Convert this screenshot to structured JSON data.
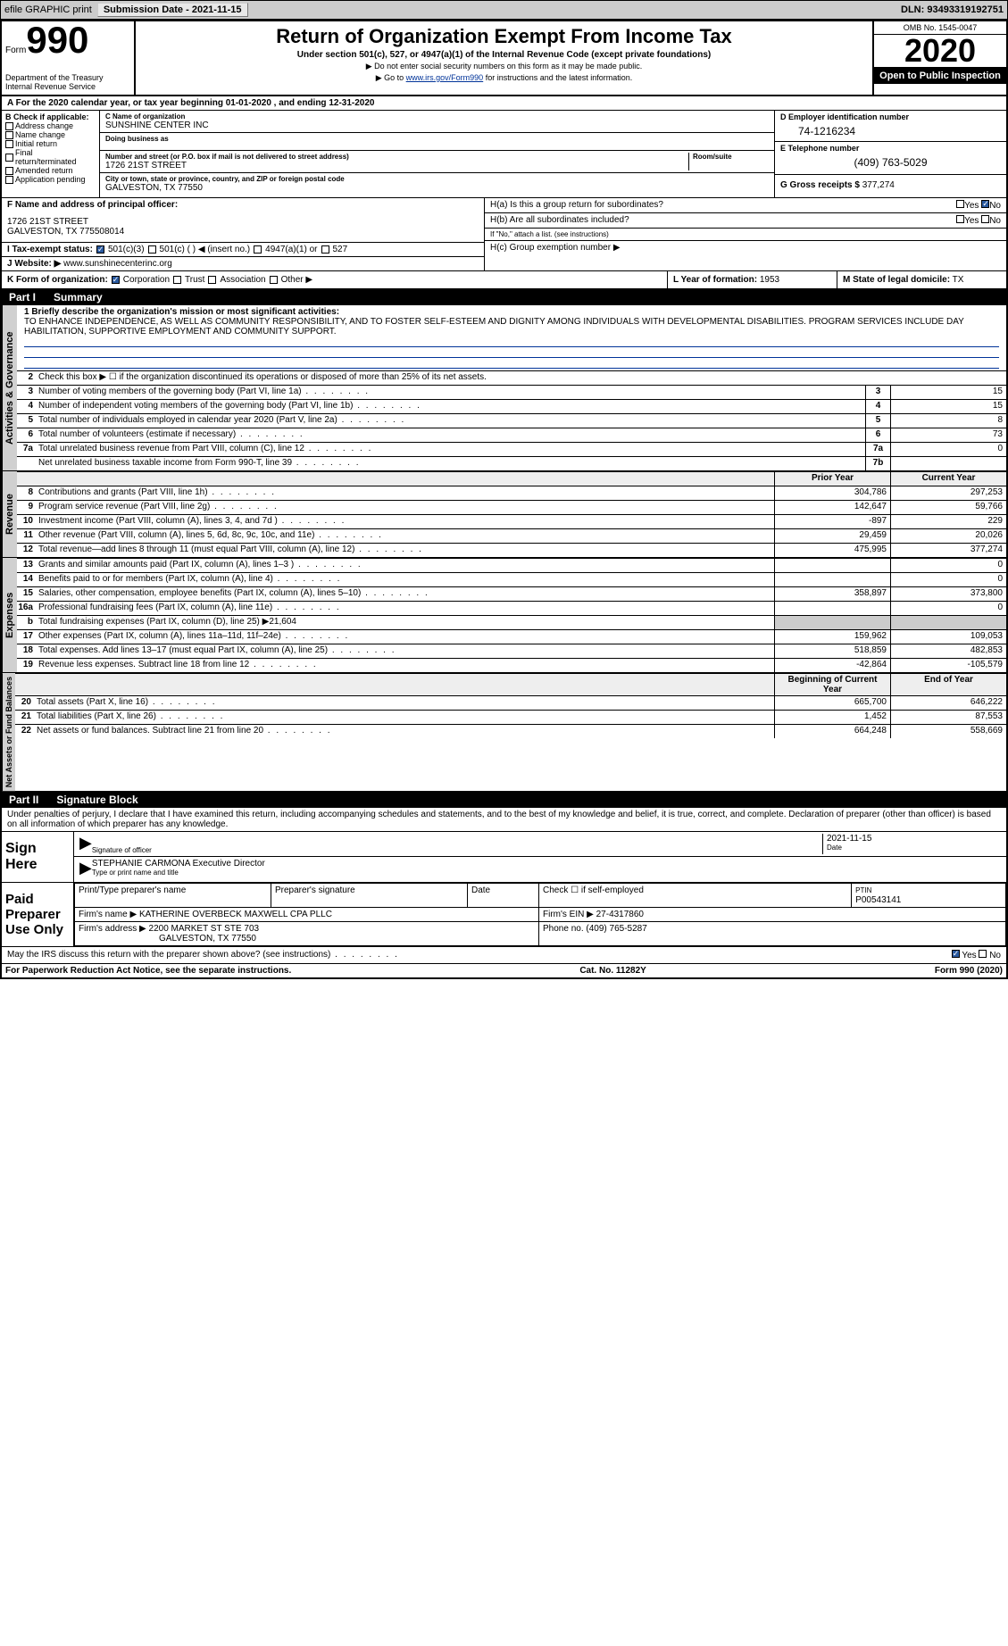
{
  "topbar": {
    "efile": "efile GRAPHIC print",
    "subdate_label": "Submission Date - 2021-11-15",
    "dln": "DLN: 93493319192751"
  },
  "header": {
    "form_word": "Form",
    "form_num": "990",
    "dept": "Department of the Treasury",
    "irs": "Internal Revenue Service",
    "title": "Return of Organization Exempt From Income Tax",
    "subtitle": "Under section 501(c), 527, or 4947(a)(1) of the Internal Revenue Code (except private foundations)",
    "note1": "▶ Do not enter social security numbers on this form as it may be made public.",
    "note2_pre": "▶ Go to ",
    "note2_link": "www.irs.gov/Form990",
    "note2_post": " for instructions and the latest information.",
    "omb": "OMB No. 1545-0047",
    "year": "2020",
    "inspection": "Open to Public Inspection"
  },
  "period": "A For the 2020 calendar year, or tax year beginning 01-01-2020    , and ending 12-31-2020",
  "section_b": {
    "title": "B Check if applicable:",
    "items": [
      "Address change",
      "Name change",
      "Initial return",
      "Final return/terminated",
      "Amended return",
      "Application pending"
    ]
  },
  "section_c": {
    "name_label": "C Name of organization",
    "name": "SUNSHINE CENTER INC",
    "dba_label": "Doing business as",
    "dba": "",
    "addr_label": "Number and street (or P.O. box if mail is not delivered to street address)",
    "room_label": "Room/suite",
    "addr": "1726 21ST STREET",
    "city_label": "City or town, state or province, country, and ZIP or foreign postal code",
    "city": "GALVESTON, TX  77550"
  },
  "section_d": {
    "ein_label": "D Employer identification number",
    "ein": "74-1216234",
    "phone_label": "E Telephone number",
    "phone": "(409) 763-5029",
    "gross_label": "G Gross receipts $",
    "gross": "377,274"
  },
  "section_f": {
    "label": "F  Name and address of principal officer:",
    "addr1": "1726 21ST STREET",
    "addr2": "GALVESTON, TX  775508014"
  },
  "section_h": {
    "ha": "H(a)  Is this a group return for subordinates?",
    "hb": "H(b)  Are all subordinates included?",
    "hb_note": "If \"No,\" attach a list. (see instructions)",
    "hc": "H(c)  Group exemption number ▶",
    "yes": "Yes",
    "no": "No"
  },
  "section_i": {
    "label": "I   Tax-exempt status:",
    "opts": [
      "501(c)(3)",
      "501(c) (  ) ◀ (insert no.)",
      "4947(a)(1) or",
      "527"
    ]
  },
  "section_j": {
    "label": "J  Website: ▶",
    "val": "www.sunshinecenterinc.org"
  },
  "section_k": {
    "label": "K Form of organization:",
    "opts": [
      "Corporation",
      "Trust",
      "Association",
      "Other ▶"
    ]
  },
  "section_l": {
    "label": "L Year of formation:",
    "val": "1953"
  },
  "section_m": {
    "label": "M State of legal domicile:",
    "val": "TX"
  },
  "part1": {
    "header": "Part I",
    "title": "Summary",
    "line1_label": "1  Briefly describe the organization's mission or most significant activities:",
    "mission": "TO ENHANCE INDEPENDENCE, AS WELL AS COMMUNITY RESPONSIBILITY, AND TO FOSTER SELF-ESTEEM AND DIGNITY AMONG INDIVIDUALS WITH DEVELOPMENTAL DISABILITIES. PROGRAM SERVICES INCLUDE DAY HABILITATION, SUPPORTIVE EMPLOYMENT AND COMMUNITY SUPPORT.",
    "line2": "Check this box ▶ ☐ if the organization discontinued its operations or disposed of more than 25% of its net assets.",
    "gov_label": "Activities & Governance",
    "rev_label": "Revenue",
    "exp_label": "Expenses",
    "net_label": "Net Assets or Fund Balances",
    "rows_gov": [
      {
        "n": "3",
        "d": "Number of voting members of the governing body (Part VI, line 1a)",
        "box": "3",
        "v": "15"
      },
      {
        "n": "4",
        "d": "Number of independent voting members of the governing body (Part VI, line 1b)",
        "box": "4",
        "v": "15"
      },
      {
        "n": "5",
        "d": "Total number of individuals employed in calendar year 2020 (Part V, line 2a)",
        "box": "5",
        "v": "8"
      },
      {
        "n": "6",
        "d": "Total number of volunteers (estimate if necessary)",
        "box": "6",
        "v": "73"
      },
      {
        "n": "7a",
        "d": "Total unrelated business revenue from Part VIII, column (C), line 12",
        "box": "7a",
        "v": "0"
      },
      {
        "n": "",
        "d": "Net unrelated business taxable income from Form 990-T, line 39",
        "box": "7b",
        "v": ""
      }
    ],
    "col_prior": "Prior Year",
    "col_curr": "Current Year",
    "rows_rev": [
      {
        "n": "8",
        "d": "Contributions and grants (Part VIII, line 1h)",
        "p": "304,786",
        "c": "297,253"
      },
      {
        "n": "9",
        "d": "Program service revenue (Part VIII, line 2g)",
        "p": "142,647",
        "c": "59,766"
      },
      {
        "n": "10",
        "d": "Investment income (Part VIII, column (A), lines 3, 4, and 7d )",
        "p": "-897",
        "c": "229"
      },
      {
        "n": "11",
        "d": "Other revenue (Part VIII, column (A), lines 5, 6d, 8c, 9c, 10c, and 11e)",
        "p": "29,459",
        "c": "20,026"
      },
      {
        "n": "12",
        "d": "Total revenue—add lines 8 through 11 (must equal Part VIII, column (A), line 12)",
        "p": "475,995",
        "c": "377,274"
      }
    ],
    "rows_exp": [
      {
        "n": "13",
        "d": "Grants and similar amounts paid (Part IX, column (A), lines 1–3 )",
        "p": "",
        "c": "0"
      },
      {
        "n": "14",
        "d": "Benefits paid to or for members (Part IX, column (A), line 4)",
        "p": "",
        "c": "0"
      },
      {
        "n": "15",
        "d": "Salaries, other compensation, employee benefits (Part IX, column (A), lines 5–10)",
        "p": "358,897",
        "c": "373,800"
      },
      {
        "n": "16a",
        "d": "Professional fundraising fees (Part IX, column (A), line 11e)",
        "p": "",
        "c": "0"
      },
      {
        "n": "b",
        "d": "Total fundraising expenses (Part IX, column (D), line 25) ▶21,604",
        "p": "",
        "c": ""
      },
      {
        "n": "17",
        "d": "Other expenses (Part IX, column (A), lines 11a–11d, 11f–24e)",
        "p": "159,962",
        "c": "109,053"
      },
      {
        "n": "18",
        "d": "Total expenses. Add lines 13–17 (must equal Part IX, column (A), line 25)",
        "p": "518,859",
        "c": "482,853"
      },
      {
        "n": "19",
        "d": "Revenue less expenses. Subtract line 18 from line 12",
        "p": "-42,864",
        "c": "-105,579"
      }
    ],
    "col_begin": "Beginning of Current Year",
    "col_end": "End of Year",
    "rows_net": [
      {
        "n": "20",
        "d": "Total assets (Part X, line 16)",
        "p": "665,700",
        "c": "646,222"
      },
      {
        "n": "21",
        "d": "Total liabilities (Part X, line 26)",
        "p": "1,452",
        "c": "87,553"
      },
      {
        "n": "22",
        "d": "Net assets or fund balances. Subtract line 21 from line 20",
        "p": "664,248",
        "c": "558,669"
      }
    ]
  },
  "part2": {
    "header": "Part II",
    "title": "Signature Block",
    "decl": "Under penalties of perjury, I declare that I have examined this return, including accompanying schedules and statements, and to the best of my knowledge and belief, it is true, correct, and complete. Declaration of preparer (other than officer) is based on all information of which preparer has any knowledge.",
    "sign_here": "Sign Here",
    "sig_officer": "Signature of officer",
    "sig_date": "Date",
    "sig_date_val": "2021-11-15",
    "name_title": "STEPHANIE CARMONA Executive Director",
    "type_name": "Type or print name and title",
    "paid": "Paid Preparer Use Only",
    "prep_name_label": "Print/Type preparer's name",
    "prep_sig_label": "Preparer's signature",
    "date_label": "Date",
    "check_self": "Check ☐ if self-employed",
    "ptin_label": "PTIN",
    "ptin": "P00543141",
    "firm_name_label": "Firm's name    ▶",
    "firm_name": "KATHERINE OVERBECK MAXWELL CPA PLLC",
    "firm_ein_label": "Firm's EIN ▶",
    "firm_ein": "27-4317860",
    "firm_addr_label": "Firm's address ▶",
    "firm_addr": "2200 MARKET ST STE 703",
    "firm_city": "GALVESTON, TX  77550",
    "firm_phone_label": "Phone no.",
    "firm_phone": "(409) 765-5287",
    "discuss": "May the IRS discuss this return with the preparer shown above? (see instructions)"
  },
  "footer": {
    "pra": "For Paperwork Reduction Act Notice, see the separate instructions.",
    "cat": "Cat. No. 11282Y",
    "form": "Form 990 (2020)"
  }
}
